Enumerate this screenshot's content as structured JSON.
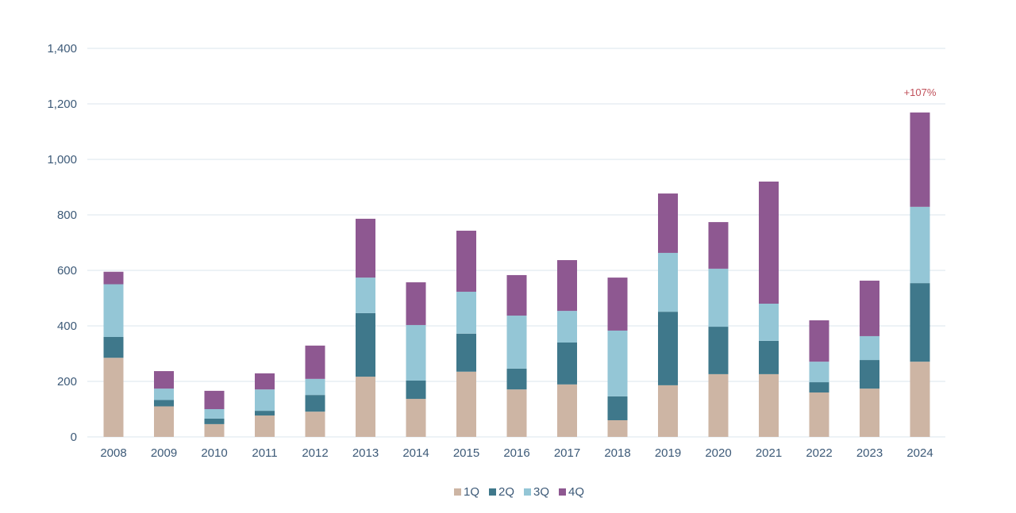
{
  "chart_data": {
    "type": "bar",
    "stacked": true,
    "title": "",
    "xlabel": "",
    "ylabel": "",
    "ylim": [
      0,
      1400
    ],
    "yticks": [
      0,
      200,
      400,
      600,
      800,
      1000,
      1200,
      1400
    ],
    "ytick_labels": [
      "0",
      "200",
      "400",
      "600",
      "800",
      "1,000",
      "1,200",
      "1,400"
    ],
    "grid": true,
    "legend_position": "bottom-center",
    "categories": [
      "2008",
      "2009",
      "2010",
      "2011",
      "2012",
      "2013",
      "2014",
      "2015",
      "2016",
      "2017",
      "2018",
      "2019",
      "2020",
      "2021",
      "2022",
      "2023",
      "2024"
    ],
    "series": [
      {
        "name": "1Q",
        "color": "#cdb5a4",
        "values": [
          285,
          110,
          46,
          77,
          91,
          217,
          137,
          235,
          171,
          189,
          60,
          186,
          226,
          226,
          160,
          174,
          271
        ]
      },
      {
        "name": "2Q",
        "color": "#3f788b",
        "values": [
          75,
          23,
          20,
          17,
          60,
          229,
          66,
          137,
          75,
          151,
          86,
          265,
          171,
          120,
          37,
          103,
          283
        ]
      },
      {
        "name": "3Q",
        "color": "#94c6d6",
        "values": [
          190,
          41,
          34,
          77,
          58,
          128,
          200,
          151,
          191,
          114,
          237,
          212,
          209,
          134,
          74,
          86,
          275
        ]
      },
      {
        "name": "4Q",
        "color": "#8e5891",
        "values": [
          45,
          63,
          66,
          58,
          120,
          212,
          154,
          220,
          146,
          183,
          191,
          214,
          168,
          440,
          149,
          200,
          340
        ]
      }
    ],
    "annotations": [
      {
        "category": "2024",
        "text": "+107%",
        "color": "#c0505a"
      }
    ]
  }
}
